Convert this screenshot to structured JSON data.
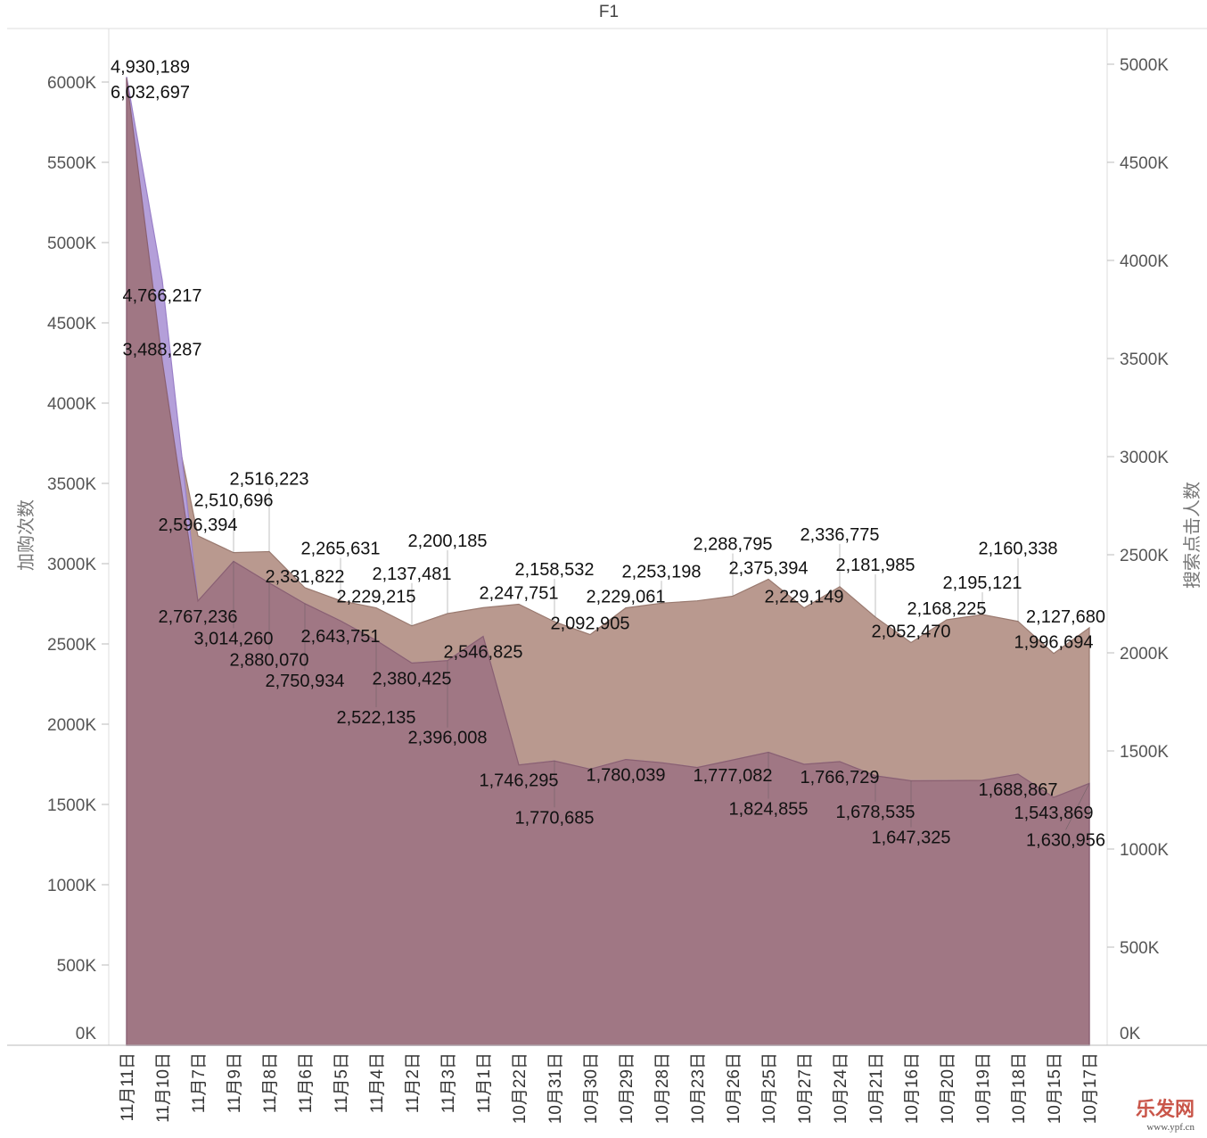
{
  "chart_data": {
    "type": "area",
    "title": "F1",
    "dual_axis": true,
    "grid": false,
    "categories": [
      "11月11日",
      "11月10日",
      "11月7日",
      "11月9日",
      "11月8日",
      "11月6日",
      "11月5日",
      "11月4日",
      "11月2日",
      "11月3日",
      "11月1日",
      "10月22日",
      "10月31日",
      "10月30日",
      "10月29日",
      "10月28日",
      "10月23日",
      "10月26日",
      "10月25日",
      "10月27日",
      "10月24日",
      "10月21日",
      "10月16日",
      "10月20日",
      "10月19日",
      "10月18日",
      "10月15日",
      "10月17日"
    ],
    "left_axis": {
      "label": "加购次数",
      "ylim": [
        0,
        6000000
      ],
      "ticks": [
        "0K",
        "500K",
        "1000K",
        "1500K",
        "2000K",
        "2500K",
        "3000K",
        "3500K",
        "4000K",
        "4500K",
        "5000K",
        "5500K",
        "6000K"
      ]
    },
    "right_axis": {
      "label": "搜索点击人数",
      "ylim": [
        0,
        5000000
      ],
      "ticks": [
        "0K",
        "500K",
        "1000K",
        "1500K",
        "2000K",
        "2500K",
        "3000K",
        "3500K",
        "4000K",
        "4500K",
        "5000K"
      ]
    },
    "series": [
      {
        "axis": "right",
        "color": "#b9998f",
        "values": [
          4930189,
          3488287,
          2596394,
          2510696,
          2516223,
          2331822,
          2265631,
          2229215,
          2137481,
          2200185,
          2230000,
          2247751,
          2158532,
          2092905,
          2229061,
          2253198,
          2265000,
          2288795,
          2375394,
          2229149,
          2336775,
          2181985,
          2052470,
          2168225,
          2195121,
          2160338,
          1996694,
          2127680
        ],
        "unlabeled": [
          10,
          16
        ]
      },
      {
        "axis": "left",
        "color": "#b49fd9",
        "values": [
          6032697,
          4766217,
          2767236,
          3014260,
          2880070,
          2750934,
          2643751,
          2522135,
          2380425,
          2396008,
          2546825,
          1746295,
          1770685,
          1720000,
          1780039,
          1760000,
          1730000,
          1777082,
          1824855,
          1750000,
          1766729,
          1678535,
          1647325,
          1648000,
          1650000,
          1688867,
          1543869,
          1630956
        ],
        "unlabeled": [
          13,
          15,
          16,
          19,
          23,
          24
        ]
      }
    ],
    "overlap_color": "#a07784"
  },
  "watermark": {
    "logo_text": "乐发网",
    "url_text": "www.ypf.cn"
  }
}
